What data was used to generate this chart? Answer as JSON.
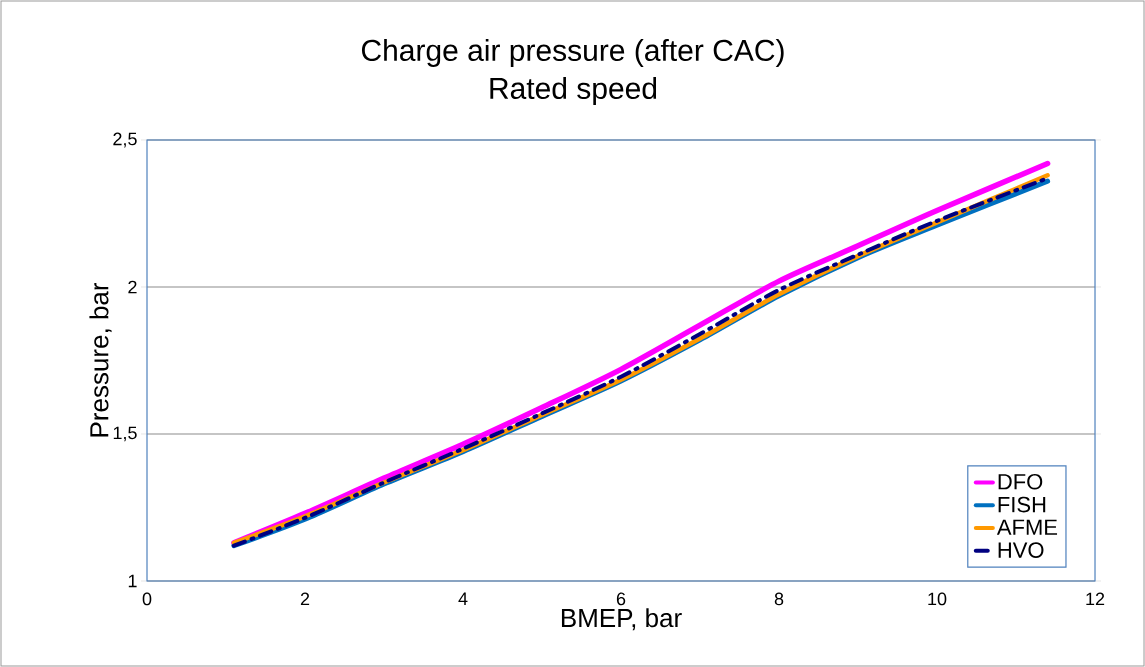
{
  "chart_data": {
    "type": "line",
    "title": "Charge air pressure (after CAC)",
    "subtitle": "Rated speed",
    "xlabel": "BMEP, bar",
    "ylabel": "Pressure, bar",
    "x": [
      1.1,
      2,
      3,
      4,
      5,
      6,
      7,
      8,
      9,
      10,
      11.4
    ],
    "series": [
      {
        "name": "DFO",
        "color": "#ff00ff",
        "values": [
          1.13,
          1.23,
          1.35,
          1.465,
          1.59,
          1.72,
          1.87,
          2.02,
          2.14,
          2.26,
          2.42
        ]
      },
      {
        "name": "FISH",
        "color": "#0070c0",
        "values": [
          1.12,
          1.21,
          1.33,
          1.44,
          1.56,
          1.68,
          1.82,
          1.97,
          2.1,
          2.21,
          2.36
        ]
      },
      {
        "name": "AFME",
        "color": "#ff9900",
        "values": [
          1.13,
          1.22,
          1.335,
          1.445,
          1.565,
          1.685,
          1.825,
          1.975,
          2.105,
          2.22,
          2.38
        ]
      },
      {
        "name": "HVO",
        "color": "#000080",
        "values": [
          1.12,
          1.215,
          1.335,
          1.45,
          1.57,
          1.695,
          1.84,
          1.99,
          2.11,
          2.225,
          2.37
        ],
        "line_style": "dashed"
      }
    ],
    "xlim": [
      0,
      12
    ],
    "ylim": [
      1,
      2.5
    ],
    "xticks": [
      0,
      2,
      4,
      6,
      8,
      10,
      12
    ],
    "yticks": [
      {
        "value": 1,
        "label": "1"
      },
      {
        "value": 1.5,
        "label": "1,5"
      },
      {
        "value": 2,
        "label": "2"
      },
      {
        "value": 2.5,
        "label": "2,5"
      }
    ],
    "grid": "y",
    "legend": "bottom right",
    "marker": "none"
  }
}
